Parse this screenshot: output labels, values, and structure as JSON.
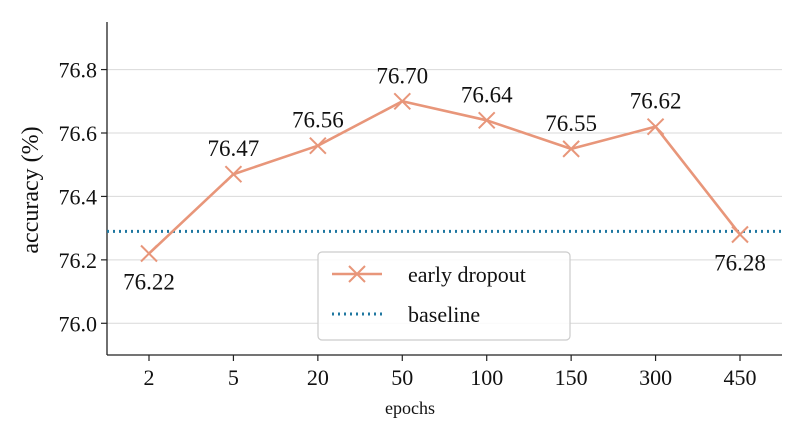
{
  "chart_data": {
    "type": "line",
    "xlabel": "epochs",
    "ylabel": "accuracy (%)",
    "categories": [
      "2",
      "5",
      "20",
      "50",
      "100",
      "150",
      "300",
      "450"
    ],
    "ylim": [
      75.9,
      76.95
    ],
    "yticks": [
      "76.0",
      "76.2",
      "76.4",
      "76.6",
      "76.8"
    ],
    "grid": "horizontal",
    "legend_position": "bottom-center",
    "series": [
      {
        "name": "early dropout",
        "values": [
          76.22,
          76.47,
          76.56,
          76.7,
          76.64,
          76.55,
          76.62,
          76.28
        ],
        "labels": [
          "76.22",
          "76.47",
          "76.56",
          "76.70",
          "76.64",
          "76.55",
          "76.62",
          "76.28"
        ],
        "color": "#e8967a",
        "marker": "x",
        "line_style": "solid"
      }
    ],
    "reference_lines": [
      {
        "name": "baseline",
        "value": 76.29,
        "color": "#1f77a0",
        "line_style": "dotted"
      }
    ]
  }
}
